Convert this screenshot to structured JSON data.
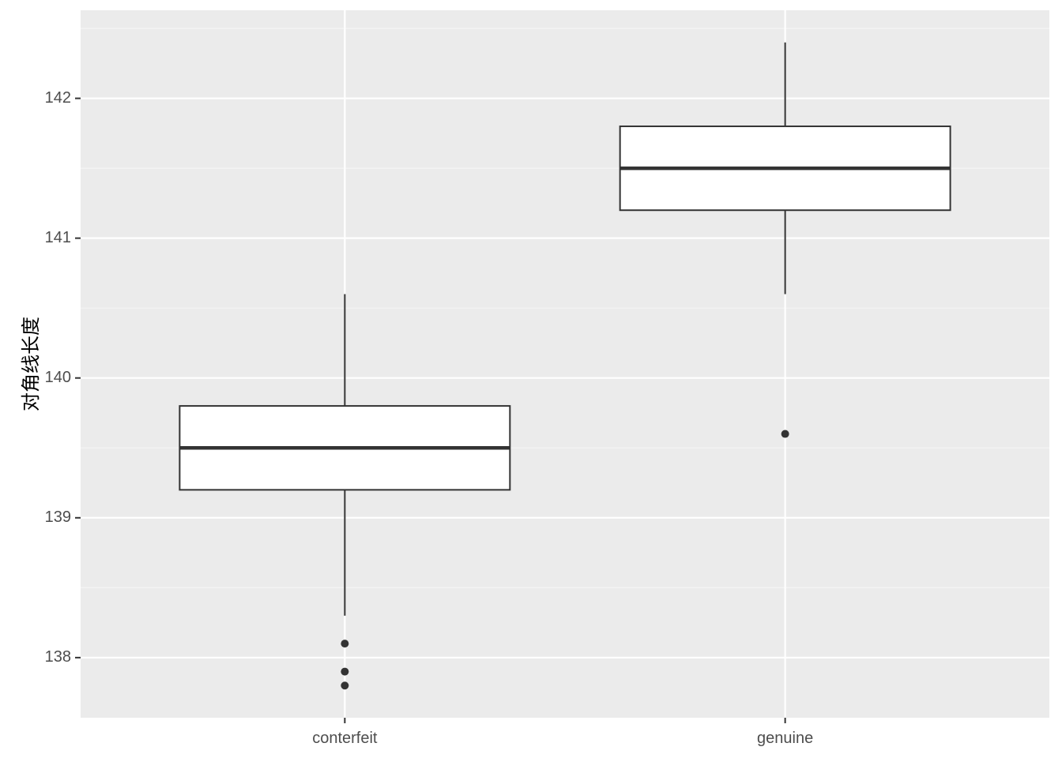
{
  "chart_data": {
    "type": "boxplot",
    "ylabel": "对角线长度",
    "xlabel": "",
    "categories": [
      "conterfeit",
      "genuine"
    ],
    "ylim": [
      137.57,
      142.63
    ],
    "y_ticks": [
      138,
      139,
      140,
      141,
      142
    ],
    "y_tick_labels": [
      "138",
      "139",
      "140",
      "141",
      "142"
    ],
    "boxes": [
      {
        "category": "conterfeit",
        "whisker_low": 138.3,
        "q1": 139.2,
        "median": 139.5,
        "q3": 139.8,
        "whisker_high": 140.6,
        "outliers": [
          138.1,
          137.9,
          137.8
        ]
      },
      {
        "category": "genuine",
        "whisker_low": 140.6,
        "q1": 141.2,
        "median": 141.5,
        "q3": 141.8,
        "whisker_high": 142.4,
        "outliers": [
          139.6
        ]
      }
    ],
    "grid": true,
    "legend": "none",
    "colors": {
      "panel_bg": "#ebebeb",
      "grid_major": "#ffffff",
      "grid_minor": "#f5f5f5",
      "box_fill": "#ffffff",
      "box_line": "#333333",
      "tick_text": "#4d4d4d"
    }
  }
}
